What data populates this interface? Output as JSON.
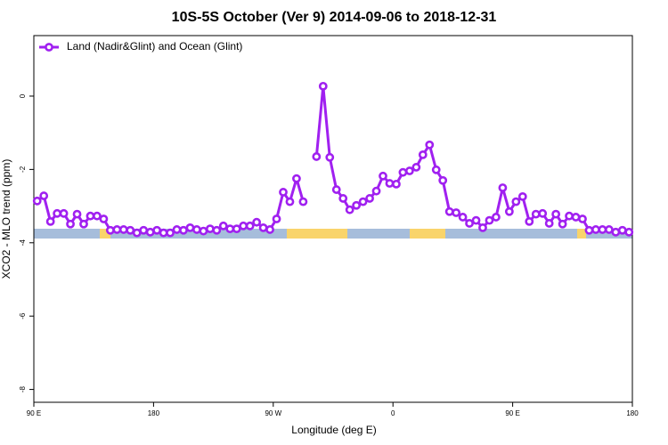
{
  "chart_data": {
    "type": "line",
    "title": "10S-5S October (Ver 9)   2014-09-06 to 2018-12-31",
    "x_label": "Longitude (deg E)",
    "y_label": "XCO2 - MLO trend (ppm)",
    "xlim": [
      90,
      540
    ],
    "ylim": [
      -8.35,
      1.65
    ],
    "xticks": [
      {
        "value": 90,
        "label": "90 E"
      },
      180,
      {
        "value": 270,
        "label": "90 W"
      },
      {
        "value": 360,
        "label": "0"
      },
      {
        "value": 450,
        "label": "90 E"
      },
      {
        "value": 540,
        "label": "180"
      }
    ],
    "yticks": [
      0,
      -2,
      -4,
      -6,
      -8
    ],
    "legend_position": "top-left",
    "x": [
      92.5,
      97.5,
      102.5,
      107.5,
      112.5,
      117.5,
      122.5,
      127.5,
      132.5,
      137.5,
      142.5,
      147.5,
      152.5,
      157.5,
      162.5,
      167.5,
      172.5,
      177.5,
      182.5,
      187.5,
      192.5,
      197.5,
      202.5,
      207.5,
      212.5,
      217.5,
      222.5,
      227.5,
      232.5,
      237.5,
      242.5,
      247.5,
      252.5,
      257.5,
      262.5,
      267.5,
      272.5,
      277.5,
      282.5,
      287.5,
      292.5,
      297.5,
      302.5,
      307.5,
      312.5,
      317.5,
      322.5,
      327.5,
      332.5,
      337.5,
      342.5,
      347.5,
      352.5,
      357.5,
      362.5,
      367.5,
      372.5,
      377.5,
      382.5,
      387.5,
      392.5,
      397.5,
      402.5,
      407.5,
      412.5,
      417.5,
      422.5,
      427.5,
      432.5,
      437.5,
      442.5,
      447.5,
      452.5,
      457.5,
      462.5,
      467.5,
      472.5,
      477.5,
      482.5,
      487.5,
      492.5,
      497.5,
      502.5,
      507.5,
      512.5,
      517.5,
      522.5,
      527.5,
      532.5,
      537.5
    ],
    "series": [
      {
        "name": "Land (Nadir&Glint) and Ocean (Glint)",
        "color": "#a020f0",
        "values": [
          -2.86,
          -2.72,
          -3.42,
          -3.2,
          -3.2,
          -3.49,
          -3.22,
          -3.49,
          -3.27,
          -3.27,
          -3.35,
          -3.66,
          -3.64,
          -3.64,
          -3.66,
          -3.73,
          -3.66,
          -3.71,
          -3.66,
          -3.73,
          -3.73,
          -3.64,
          -3.66,
          -3.59,
          -3.64,
          -3.68,
          -3.62,
          -3.66,
          -3.54,
          -3.62,
          -3.62,
          -3.54,
          -3.54,
          -3.44,
          -3.59,
          -3.64,
          -3.35,
          -2.62,
          -2.88,
          -2.25,
          -2.88,
          null,
          -1.65,
          0.27,
          -1.67,
          -2.55,
          -2.79,
          -3.1,
          -2.98,
          -2.88,
          -2.79,
          -2.59,
          -2.18,
          -2.38,
          -2.4,
          -2.08,
          -2.04,
          -1.94,
          -1.6,
          -1.33,
          -2.01,
          -2.3,
          -3.15,
          -3.18,
          -3.3,
          -3.47,
          -3.39,
          -3.59,
          -3.39,
          -3.3,
          -2.5,
          -3.15,
          -2.88,
          -2.74,
          -3.42,
          -3.22,
          -3.2,
          -3.47,
          -3.22,
          -3.49,
          -3.27,
          -3.3,
          -3.35,
          -3.66,
          -3.64,
          -3.64,
          -3.64,
          -3.71,
          -3.66,
          -3.71
        ]
      }
    ]
  }
}
